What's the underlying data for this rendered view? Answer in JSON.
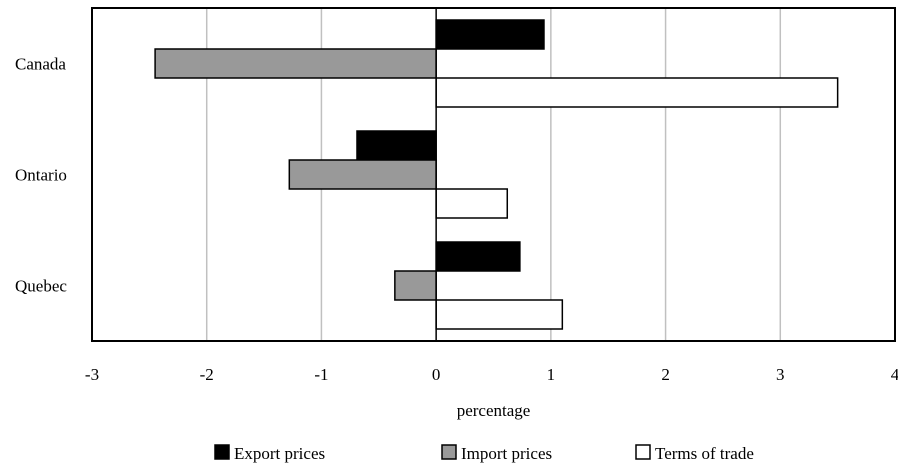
{
  "chart_data": {
    "type": "bar",
    "orientation": "horizontal",
    "title": "",
    "xlabel": "percentage",
    "ylabel": "",
    "categories": [
      "Canada",
      "Ontario",
      "Quebec"
    ],
    "series": [
      {
        "name": "Export prices",
        "values": [
          0.94,
          -0.69,
          0.73
        ],
        "color": "#000000"
      },
      {
        "name": "Import prices",
        "values": [
          -2.45,
          -1.28,
          -0.36
        ],
        "color": "#999999"
      },
      {
        "name": "Terms of trade",
        "values": [
          3.5,
          0.62,
          1.1
        ],
        "color": "#ffffff"
      }
    ],
    "xlim": [
      -3,
      4
    ],
    "xticks": [
      -3,
      -2,
      -1,
      0,
      1,
      2,
      3,
      4
    ],
    "grid": "vertical",
    "legend": "bottom"
  }
}
